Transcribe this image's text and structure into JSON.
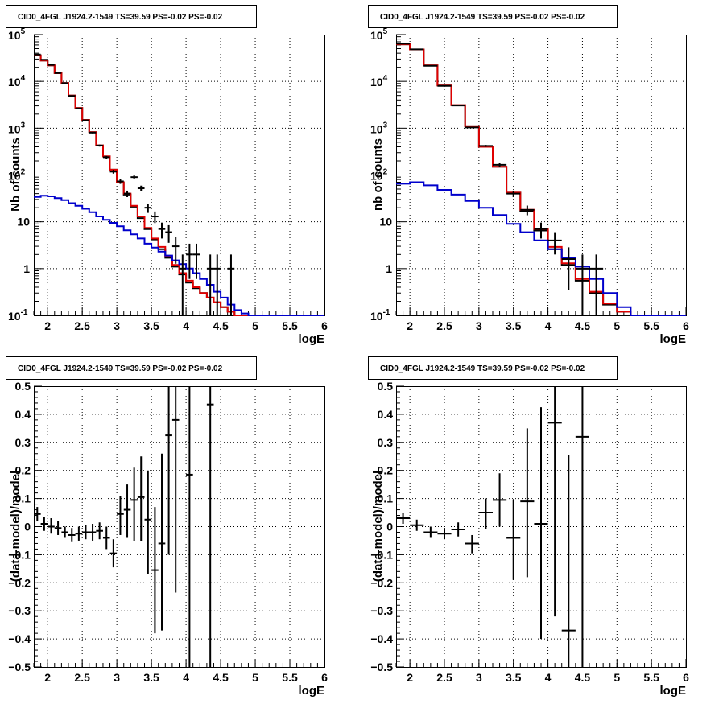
{
  "colors": {
    "data": "#000000",
    "model_total": "#e00000",
    "model_background": "#0000cc",
    "grid": "#000000"
  },
  "chart_data": [
    {
      "type": "line",
      "title": "CID0_4FGL J1924.2-1549 TS=39.59 PS=-0.02 PS=-0.02",
      "xlabel": "logE",
      "ylabel": "Nb of counts",
      "xlim": [
        1.8,
        6.0
      ],
      "ylim": [
        0.1,
        100000
      ],
      "log_y": true,
      "grid": true,
      "x_ticks": [
        "2",
        "2.5",
        "3",
        "3.5",
        "4",
        "4.5",
        "5",
        "5.5",
        "6"
      ],
      "y_ticks": [
        "10^-1",
        "1",
        "10",
        "10^2",
        "10^3",
        "10^4",
        "10^5"
      ],
      "bin_edges": [
        1.8,
        1.9,
        2.0,
        2.1,
        2.2,
        2.3,
        2.4,
        2.5,
        2.6,
        2.7,
        2.8,
        2.9,
        3.0,
        3.1,
        3.2,
        3.3,
        3.4,
        3.5,
        3.6,
        3.7,
        3.8,
        3.9,
        4.0,
        4.1,
        4.2,
        4.3,
        4.4,
        4.5,
        4.6,
        4.7,
        4.8,
        4.9,
        5.0,
        5.1,
        5.2,
        5.3,
        5.4,
        5.5,
        5.6,
        5.7,
        5.8,
        5.9,
        6.0
      ],
      "series": [
        {
          "values": [
            36000,
            28000,
            22000,
            15000,
            9200,
            5000,
            2700,
            1500,
            820,
            430,
            250,
            130,
            70,
            38,
            21,
            12,
            7.0,
            4.2,
            2.6,
            1.7,
            1.1,
            0.75,
            0.5,
            0.38,
            0.3,
            0.24,
            0.19,
            0.15,
            0.12,
            0.1,
            0.1,
            0.1,
            0.1,
            0.1,
            0.1,
            0.1,
            0.1,
            0.1,
            0.1,
            0.1,
            0.1,
            0.1
          ]
        },
        {
          "values": [
            36000,
            28000,
            22000,
            15000,
            9200,
            5000,
            2700,
            1500,
            820,
            430,
            250,
            130,
            70,
            40,
            22,
            13,
            7.4,
            4.4,
            2.9,
            1.8,
            1.2,
            0.8,
            0.55,
            0.4,
            0.3,
            0.24,
            0.19,
            0.15,
            0.12,
            0.1,
            0.1,
            0.1,
            0.1,
            0.1,
            0.1,
            0.1,
            0.1,
            0.1,
            0.1,
            0.1,
            0.1,
            0.1
          ]
        },
        {
          "values": [
            34,
            36,
            35,
            32,
            29,
            25,
            22,
            19,
            16,
            13,
            11,
            9.5,
            8,
            6.6,
            5.4,
            4.4,
            3.4,
            2.8,
            2.3,
            1.9,
            1.5,
            1.25,
            1.0,
            0.8,
            0.6,
            0.45,
            0.32,
            0.24,
            0.17,
            0.13,
            0.11,
            0.1,
            0.1,
            0.1,
            0.1,
            0.1,
            0.1,
            0.1,
            0.1,
            0.1,
            0.1,
            0.1
          ]
        }
      ],
      "points": [
        {
          "x": 1.85,
          "y": 37500,
          "xerr": 0.05,
          "ylo": 37300,
          "yhi": 37700
        },
        {
          "x": 1.95,
          "y": 29000,
          "xerr": 0.05,
          "ylo": 28800,
          "yhi": 29200
        },
        {
          "x": 2.05,
          "y": 22500,
          "xerr": 0.05,
          "ylo": 22300,
          "yhi": 22700
        },
        {
          "x": 2.15,
          "y": 15100,
          "xerr": 0.05,
          "ylo": 14900,
          "yhi": 15300
        },
        {
          "x": 2.25,
          "y": 9150,
          "xerr": 0.05,
          "ylo": 9050,
          "yhi": 9250
        },
        {
          "x": 2.35,
          "y": 4900,
          "xerr": 0.05,
          "ylo": 4830,
          "yhi": 4970
        },
        {
          "x": 2.45,
          "y": 2640,
          "xerr": 0.05,
          "ylo": 2590,
          "yhi": 2690
        },
        {
          "x": 2.55,
          "y": 1470,
          "xerr": 0.05,
          "ylo": 1430,
          "yhi": 1510
        },
        {
          "x": 2.65,
          "y": 805,
          "xerr": 0.05,
          "ylo": 777,
          "yhi": 833
        },
        {
          "x": 2.75,
          "y": 425,
          "xerr": 0.05,
          "ylo": 404,
          "yhi": 446
        },
        {
          "x": 2.85,
          "y": 240,
          "xerr": 0.05,
          "ylo": 225,
          "yhi": 255
        },
        {
          "x": 2.95,
          "y": 118,
          "xerr": 0.05,
          "ylo": 107,
          "yhi": 129
        },
        {
          "x": 3.05,
          "y": 73,
          "xerr": 0.05,
          "ylo": 64.5,
          "yhi": 81.5
        },
        {
          "x": 3.15,
          "y": 40,
          "xerr": 0.05,
          "ylo": 33.7,
          "yhi": 46.3
        },
        {
          "x": 3.25,
          "y": 90,
          "xerr": 0.05,
          "ylo": 80.5,
          "yhi": 99.5
        },
        {
          "x": 3.35,
          "y": 52,
          "xerr": 0.05,
          "ylo": 44.8,
          "yhi": 59.2
        },
        {
          "x": 3.45,
          "y": 20,
          "xerr": 0.05,
          "ylo": 15.5,
          "yhi": 24.5
        },
        {
          "x": 3.55,
          "y": 13,
          "xerr": 0.05,
          "ylo": 9.4,
          "yhi": 16.6
        },
        {
          "x": 3.65,
          "y": 7,
          "xerr": 0.05,
          "ylo": 4.4,
          "yhi": 9.6
        },
        {
          "x": 3.75,
          "y": 6,
          "xerr": 0.05,
          "ylo": 3.55,
          "yhi": 8.45
        },
        {
          "x": 3.85,
          "y": 3,
          "xerr": 0.05,
          "ylo": 1.27,
          "yhi": 4.73
        },
        {
          "x": 3.95,
          "y": 1,
          "xerr": 0.05,
          "ylo": 0.1,
          "yhi": 2
        },
        {
          "x": 4.05,
          "y": 2,
          "xerr": 0.05,
          "ylo": 0.6,
          "yhi": 3.4
        },
        {
          "x": 4.15,
          "y": 2,
          "xerr": 0.05,
          "ylo": 0.6,
          "yhi": 3.4
        },
        {
          "x": 4.35,
          "y": 1,
          "xerr": 0.05,
          "ylo": 0.1,
          "yhi": 2
        },
        {
          "x": 4.45,
          "y": 1,
          "xerr": 0.05,
          "ylo": 0.1,
          "yhi": 2
        },
        {
          "x": 4.65,
          "y": 1,
          "xerr": 0.05,
          "ylo": 0.1,
          "yhi": 2
        }
      ]
    },
    {
      "type": "line",
      "title": "CID0_4FGL J1924.2-1549 TS=39.59 PS=-0.02 PS=-0.02",
      "xlabel": "logE",
      "ylabel": "nb of counts",
      "xlim": [
        1.8,
        6.0
      ],
      "ylim": [
        0.1,
        100000
      ],
      "log_y": true,
      "grid": true,
      "x_ticks": [
        "2",
        "2.5",
        "3",
        "3.5",
        "4",
        "4.5",
        "5",
        "5.5",
        "6"
      ],
      "y_ticks": [
        "10^-1",
        "1",
        "10",
        "10^2",
        "10^3",
        "10^4",
        "10^5"
      ],
      "bin_edges": [
        1.8,
        2.0,
        2.2,
        2.4,
        2.6,
        2.8,
        3.0,
        3.2,
        3.4,
        3.6,
        3.8,
        4.0,
        4.2,
        4.4,
        4.6,
        4.8,
        5.0,
        5.2,
        5.4,
        5.6,
        5.8,
        6.0
      ],
      "series": [
        {
          "values": [
            62000,
            48000,
            22000,
            8200,
            3100,
            1100,
            400,
            150,
            42,
            17,
            6.5,
            2.6,
            1.2,
            0.55,
            0.3,
            0.17,
            0.12,
            0.1,
            0.1,
            0.1,
            0.1
          ]
        },
        {
          "values": [
            62000,
            48000,
            22000,
            8200,
            3100,
            1100,
            400,
            150,
            42,
            18,
            7,
            2.9,
            1.3,
            0.6,
            0.32,
            0.18,
            0.12,
            0.1,
            0.1,
            0.1,
            0.1
          ]
        },
        {
          "values": [
            65,
            70,
            60,
            48,
            38,
            28,
            20,
            14,
            9,
            6,
            4,
            2.6,
            1.7,
            1.1,
            0.6,
            0.3,
            0.15,
            0.1,
            0.1,
            0.1,
            0.1
          ]
        }
      ],
      "points": [
        {
          "x": 1.9,
          "y": 63800,
          "xerr": 0.1,
          "ylo": 63500,
          "yhi": 64100
        },
        {
          "x": 2.1,
          "y": 48200,
          "xerr": 0.1,
          "ylo": 47900,
          "yhi": 48500
        },
        {
          "x": 2.3,
          "y": 21600,
          "xerr": 0.1,
          "ylo": 21450,
          "yhi": 21750
        },
        {
          "x": 2.5,
          "y": 8000,
          "xerr": 0.1,
          "ylo": 7910,
          "yhi": 8090
        },
        {
          "x": 2.7,
          "y": 3060,
          "xerr": 0.1,
          "ylo": 3005,
          "yhi": 3115
        },
        {
          "x": 2.9,
          "y": 1040,
          "xerr": 0.1,
          "ylo": 1008,
          "yhi": 1072
        },
        {
          "x": 3.1,
          "y": 418,
          "xerr": 0.1,
          "ylo": 398,
          "yhi": 438
        },
        {
          "x": 3.3,
          "y": 165,
          "xerr": 0.1,
          "ylo": 152,
          "yhi": 178
        },
        {
          "x": 3.5,
          "y": 40,
          "xerr": 0.1,
          "ylo": 33.7,
          "yhi": 46.3
        },
        {
          "x": 3.7,
          "y": 18,
          "xerr": 0.1,
          "ylo": 13.8,
          "yhi": 22.2
        },
        {
          "x": 3.9,
          "y": 7,
          "xerr": 0.1,
          "ylo": 4.4,
          "yhi": 9.6
        },
        {
          "x": 4.1,
          "y": 4,
          "xerr": 0.1,
          "ylo": 2,
          "yhi": 6
        },
        {
          "x": 4.3,
          "y": 1.6,
          "xerr": 0.1,
          "ylo": 0.35,
          "yhi": 2.85
        },
        {
          "x": 4.5,
          "y": 1,
          "xerr": 0.1,
          "ylo": 0.1,
          "yhi": 2
        },
        {
          "x": 4.7,
          "y": 1,
          "xerr": 0.1,
          "ylo": 0.1,
          "yhi": 2
        }
      ]
    },
    {
      "type": "scatter",
      "title": "CID0_4FGL J1924.2-1549 TS=39.59 PS=-0.02 PS=-0.02",
      "xlabel": "logE",
      "ylabel": "(data-model)/model",
      "xlim": [
        1.8,
        6.0
      ],
      "ylim": [
        -0.5,
        0.5
      ],
      "grid": true,
      "x_ticks": [
        "2",
        "2.5",
        "3",
        "3.5",
        "4",
        "4.5",
        "5",
        "5.5",
        "6"
      ],
      "y_ticks": [
        "−0.5",
        "−0.4",
        "−0.3",
        "−0.2",
        "−0.1",
        "0",
        "0.1",
        "0.2",
        "0.3",
        "0.4",
        "0.5"
      ],
      "points": [
        {
          "x": 1.85,
          "y": 0.045,
          "xerr": 0.05,
          "ylo": 0.02,
          "yhi": 0.07
        },
        {
          "x": 1.95,
          "y": 0.01,
          "xerr": 0.05,
          "ylo": -0.015,
          "yhi": 0.035
        },
        {
          "x": 2.05,
          "y": 0.0,
          "xerr": 0.05,
          "ylo": -0.025,
          "yhi": 0.03
        },
        {
          "x": 2.15,
          "y": -0.005,
          "xerr": 0.05,
          "ylo": -0.03,
          "yhi": 0.02
        },
        {
          "x": 2.25,
          "y": -0.02,
          "xerr": 0.05,
          "ylo": -0.04,
          "yhi": 0.0
        },
        {
          "x": 2.35,
          "y": -0.03,
          "xerr": 0.05,
          "ylo": -0.055,
          "yhi": -0.005
        },
        {
          "x": 2.45,
          "y": -0.025,
          "xerr": 0.05,
          "ylo": -0.05,
          "yhi": 0.0
        },
        {
          "x": 2.55,
          "y": -0.02,
          "xerr": 0.05,
          "ylo": -0.045,
          "yhi": 0.005
        },
        {
          "x": 2.65,
          "y": -0.02,
          "xerr": 0.05,
          "ylo": -0.05,
          "yhi": 0.01
        },
        {
          "x": 2.75,
          "y": -0.015,
          "xerr": 0.05,
          "ylo": -0.045,
          "yhi": 0.015
        },
        {
          "x": 2.85,
          "y": -0.04,
          "xerr": 0.05,
          "ylo": -0.08,
          "yhi": 0.0
        },
        {
          "x": 2.95,
          "y": -0.095,
          "xerr": 0.05,
          "ylo": -0.145,
          "yhi": -0.045
        },
        {
          "x": 3.05,
          "y": 0.045,
          "xerr": 0.05,
          "ylo": -0.03,
          "yhi": 0.11
        },
        {
          "x": 3.15,
          "y": 0.06,
          "xerr": 0.05,
          "ylo": -0.04,
          "yhi": 0.15
        },
        {
          "x": 3.25,
          "y": 0.095,
          "xerr": 0.05,
          "ylo": -0.05,
          "yhi": 0.21
        },
        {
          "x": 3.35,
          "y": 0.105,
          "xerr": 0.05,
          "ylo": -0.05,
          "yhi": 0.25
        },
        {
          "x": 3.45,
          "y": 0.025,
          "xerr": 0.05,
          "ylo": -0.17,
          "yhi": 0.2
        },
        {
          "x": 3.55,
          "y": -0.155,
          "xerr": 0.05,
          "ylo": -0.38,
          "yhi": 0.07
        },
        {
          "x": 3.65,
          "y": -0.06,
          "xerr": 0.05,
          "ylo": -0.37,
          "yhi": 0.26
        },
        {
          "x": 3.75,
          "y": 0.325,
          "xerr": 0.05,
          "ylo": -0.1,
          "yhi": 0.5
        },
        {
          "x": 3.85,
          "y": 0.38,
          "xerr": 0.05,
          "ylo": -0.235,
          "yhi": 0.5
        },
        {
          "x": 4.05,
          "y": 0.185,
          "xerr": 0.05,
          "ylo": -0.5,
          "yhi": 0.5
        },
        {
          "x": 4.35,
          "y": 0.435,
          "xerr": 0.05,
          "ylo": -0.5,
          "yhi": 0.5
        }
      ]
    },
    {
      "type": "scatter",
      "title": "CID0_4FGL J1924.2-1549 TS=39.59 PS=-0.02 PS=-0.02",
      "xlabel": "logE",
      "ylabel": "(data-model)/model",
      "xlim": [
        1.8,
        6.0
      ],
      "ylim": [
        -0.5,
        0.5
      ],
      "grid": true,
      "x_ticks": [
        "2",
        "2.5",
        "3",
        "3.5",
        "4",
        "4.5",
        "5",
        "5.5",
        "6"
      ],
      "y_ticks": [
        "−0.5",
        "−0.4",
        "−0.3",
        "−0.2",
        "−0.1",
        "0",
        "0.1",
        "0.2",
        "0.3",
        "0.4",
        "0.5"
      ],
      "points": [
        {
          "x": 1.9,
          "y": 0.03,
          "xerr": 0.1,
          "ylo": 0.01,
          "yhi": 0.05
        },
        {
          "x": 2.1,
          "y": 0.005,
          "xerr": 0.1,
          "ylo": -0.015,
          "yhi": 0.025
        },
        {
          "x": 2.3,
          "y": -0.02,
          "xerr": 0.1,
          "ylo": -0.04,
          "yhi": 0.0
        },
        {
          "x": 2.5,
          "y": -0.025,
          "xerr": 0.1,
          "ylo": -0.045,
          "yhi": -0.005
        },
        {
          "x": 2.7,
          "y": -0.01,
          "xerr": 0.1,
          "ylo": -0.035,
          "yhi": 0.015
        },
        {
          "x": 2.9,
          "y": -0.06,
          "xerr": 0.1,
          "ylo": -0.095,
          "yhi": -0.03
        },
        {
          "x": 3.1,
          "y": 0.05,
          "xerr": 0.1,
          "ylo": -0.01,
          "yhi": 0.1
        },
        {
          "x": 3.3,
          "y": 0.095,
          "xerr": 0.1,
          "ylo": 0.0,
          "yhi": 0.19
        },
        {
          "x": 3.5,
          "y": -0.04,
          "xerr": 0.1,
          "ylo": -0.19,
          "yhi": 0.095
        },
        {
          "x": 3.7,
          "y": 0.09,
          "xerr": 0.1,
          "ylo": -0.18,
          "yhi": 0.35
        },
        {
          "x": 3.9,
          "y": 0.01,
          "xerr": 0.1,
          "ylo": -0.4,
          "yhi": 0.425
        },
        {
          "x": 4.1,
          "y": 0.37,
          "xerr": 0.1,
          "ylo": -0.32,
          "yhi": 0.5
        },
        {
          "x": 4.3,
          "y": -0.37,
          "xerr": 0.1,
          "ylo": -0.5,
          "yhi": 0.255
        },
        {
          "x": 4.5,
          "y": 0.32,
          "xerr": 0.1,
          "ylo": -0.5,
          "yhi": 0.5
        }
      ]
    }
  ]
}
